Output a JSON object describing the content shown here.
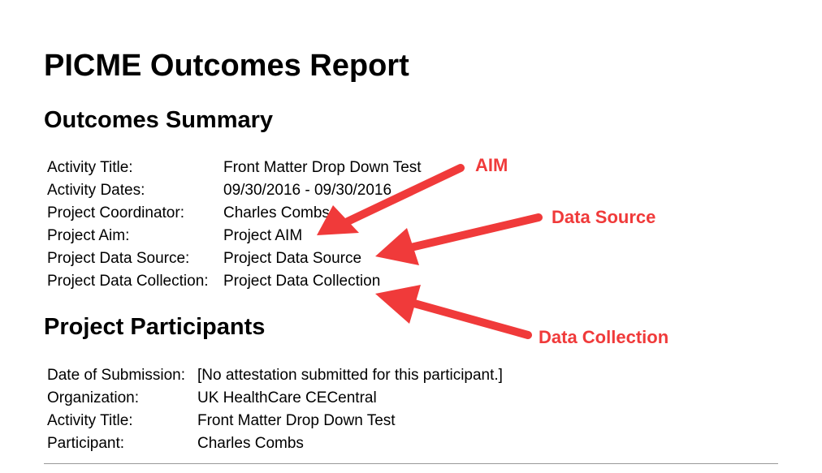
{
  "report": {
    "title": "PICME Outcomes Report"
  },
  "summary": {
    "heading": "Outcomes Summary",
    "rows": [
      {
        "label": "Activity Title:",
        "value": "Front Matter Drop Down Test"
      },
      {
        "label": "Activity Dates:",
        "value": "09/30/2016 - 09/30/2016"
      },
      {
        "label": "Project Coordinator:",
        "value": "Charles Combs"
      },
      {
        "label": "Project Aim:",
        "value": "Project AIM"
      },
      {
        "label": "Project Data Source:",
        "value": "Project Data Source"
      },
      {
        "label": "Project Data Collection:",
        "value": "Project Data Collection"
      }
    ]
  },
  "participants": {
    "heading": "Project Participants",
    "rows": [
      {
        "label": "Date of Submission:",
        "value": "[No attestation submitted for this participant.]"
      },
      {
        "label": "Organization:",
        "value": "UK HealthCare CECentral"
      },
      {
        "label": "Activity Title:",
        "value": "Front Matter Drop Down Test"
      },
      {
        "label": "Participant:",
        "value": "Charles Combs"
      }
    ]
  },
  "annotations": {
    "color": "#f03a3a",
    "callouts": [
      {
        "id": "aim",
        "text": "AIM",
        "icon": "arrow-icon"
      },
      {
        "id": "source",
        "text": "Data Source",
        "icon": "arrow-icon"
      },
      {
        "id": "collection",
        "text": "Data Collection",
        "icon": "arrow-icon"
      }
    ]
  }
}
